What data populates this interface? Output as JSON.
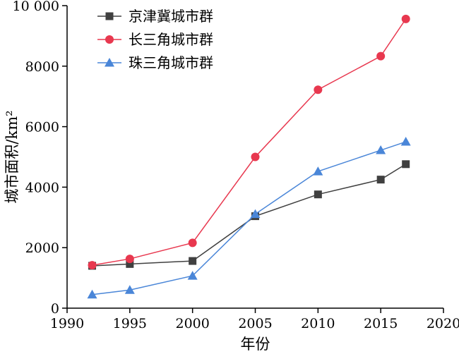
{
  "chart_data": {
    "type": "line",
    "title": "",
    "xlabel": "年份",
    "ylabel": "城市面积/km²",
    "xlim": [
      1990,
      2020
    ],
    "ylim": [
      0,
      10000
    ],
    "xticks": [
      1990,
      1995,
      2000,
      2005,
      2010,
      2015,
      2020
    ],
    "yticks": [
      0,
      2000,
      4000,
      6000,
      8000,
      10000
    ],
    "xtick_labels": [
      "1990",
      "1995",
      "2000",
      "2005",
      "2010",
      "2015",
      "2020"
    ],
    "ytick_labels": [
      "0",
      "2000",
      "4000",
      "6000",
      "8000",
      "10 000"
    ],
    "x": [
      1992,
      1995,
      2000,
      2005,
      2010,
      2015,
      2017
    ],
    "grid": false,
    "legend_position": "top-left",
    "series": [
      {
        "name": "京津冀城市群",
        "color": "#404040",
        "marker": "square",
        "values": [
          1400,
          1460,
          1560,
          3040,
          3760,
          4250,
          4760
        ]
      },
      {
        "name": "长三角城市群",
        "color": "#e8384f",
        "marker": "circle",
        "values": [
          1420,
          1630,
          2160,
          5000,
          7220,
          8330,
          9560
        ]
      },
      {
        "name": "珠三角城市群",
        "color": "#4a86d8",
        "marker": "triangle",
        "values": [
          450,
          600,
          1070,
          3110,
          4520,
          5220,
          5500
        ]
      }
    ]
  }
}
